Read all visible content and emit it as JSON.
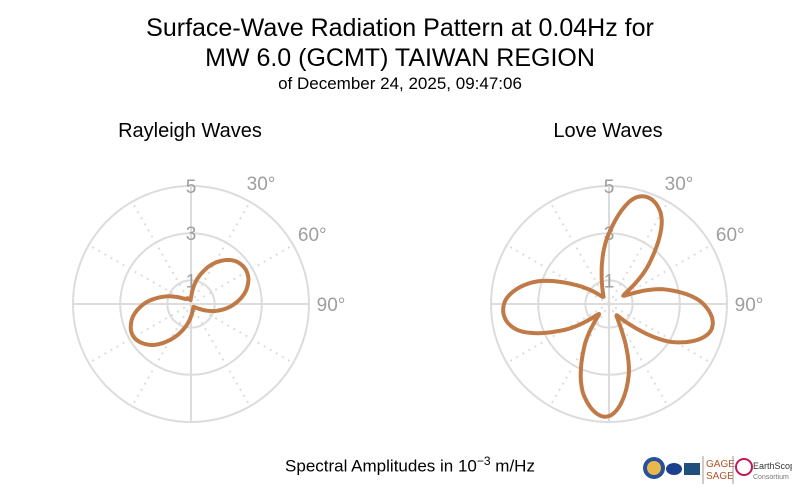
{
  "title": {
    "line1": "Surface-Wave Radiation Pattern at 0.04Hz for",
    "line2": "MW 6.0 (GCMT) TAIWAN REGION",
    "subtitle": "of December 24, 2025, 09:47:06"
  },
  "footer": {
    "text": "Spectral Amplitudes in ",
    "base": "10",
    "exponent": "−3",
    "unit": " m/Hz"
  },
  "logos": {
    "gage": "GAGE",
    "sage": "SAGE",
    "earthscope": "EarthScope",
    "consortium": "Consortium"
  },
  "colors": {
    "pattern": "#c07a47",
    "grid": "#dcdcdc",
    "tick_text": "#9e9e9e"
  },
  "chart_data": [
    {
      "type": "polar-line",
      "title": "Rayleigh Waves",
      "r_ticks": [
        "1",
        "3",
        "5"
      ],
      "angle_ticks": [
        "30°",
        "60°",
        "90°"
      ],
      "rlim": [
        0,
        5
      ],
      "grid": true,
      "theta_deg": [
        0,
        15,
        30,
        45,
        60,
        75,
        90,
        105,
        120,
        135,
        150,
        165,
        180,
        195,
        210,
        225,
        240,
        255,
        270,
        285,
        300,
        315,
        330,
        345,
        360
      ],
      "r": [
        0.27,
        1.15,
        2.0,
        2.59,
        2.73,
        2.44,
        1.84,
        1.12,
        0.42,
        0.18,
        0.2,
        0.28,
        0.53,
        1.05,
        1.75,
        2.45,
        2.8,
        2.6,
        2.0,
        1.2,
        0.54,
        0.3,
        0.28,
        0.19,
        0.27
      ]
    },
    {
      "type": "polar-line",
      "title": "Love Waves",
      "r_ticks": [
        "1",
        "3",
        "5"
      ],
      "angle_ticks": [
        "30°",
        "60°",
        "90°"
      ],
      "rlim": [
        0,
        5
      ],
      "grid": true,
      "theta_deg": [
        0,
        15,
        30,
        45,
        60,
        75,
        90,
        105,
        120,
        135,
        150,
        165,
        180,
        195,
        210,
        225,
        240,
        255,
        270,
        285,
        300,
        315,
        330,
        345,
        360
      ],
      "r": [
        3.0,
        4.7,
        4.4,
        2.4,
        0.7,
        2.4,
        4.0,
        4.45,
        3.25,
        1.2,
        0.7,
        3.2,
        4.75,
        4.05,
        2.1,
        0.6,
        2.2,
        4.1,
        4.45,
        3.45,
        1.6,
        0.5,
        0.5,
        1.2,
        3.0
      ]
    }
  ]
}
